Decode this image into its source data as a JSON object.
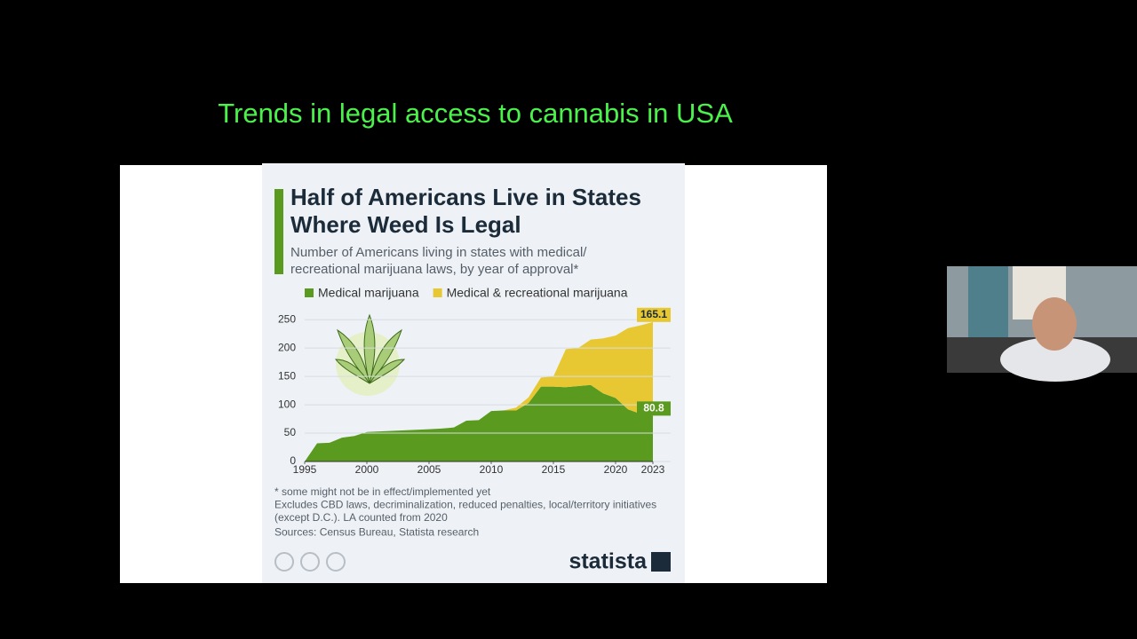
{
  "slide_title": "Trends in legal access to cannabis in USA",
  "chart_data": {
    "type": "area",
    "stacked": true,
    "title_lines": [
      "Half of Americans Live in States",
      "Where Weed Is Legal"
    ],
    "subtitle_lines": [
      "Number of Americans living in states with medical/",
      "recreational marijuana laws, by year of approval*"
    ],
    "x": [
      1995,
      1996,
      1997,
      1998,
      1999,
      2000,
      2001,
      2002,
      2003,
      2004,
      2005,
      2006,
      2007,
      2008,
      2009,
      2010,
      2011,
      2012,
      2013,
      2014,
      2015,
      2016,
      2017,
      2018,
      2019,
      2020,
      2021,
      2022,
      2023
    ],
    "series": [
      {
        "name": "Medical marijuana",
        "color": "#5a9a1e",
        "values": [
          0,
          32,
          33,
          42,
          45,
          52,
          53,
          54,
          55,
          56,
          57,
          58,
          60,
          72,
          73,
          89,
          90,
          90,
          103,
          132,
          132,
          131,
          133,
          135,
          120,
          112,
          92,
          84,
          80.8
        ]
      },
      {
        "name": "Medical & recreational marijuana",
        "color": "#e8c832",
        "values": [
          0,
          0,
          0,
          0,
          0,
          0,
          0,
          0,
          0,
          0,
          0,
          0,
          0,
          0,
          0,
          0,
          0,
          5,
          10,
          16,
          18,
          67,
          67,
          80,
          97,
          110,
          143,
          156,
          165.1
        ]
      }
    ],
    "xlim": [
      1995,
      2023
    ],
    "ylim": [
      0,
      255
    ],
    "xticks": [
      1995,
      2000,
      2005,
      2010,
      2015,
      2020,
      2023
    ],
    "yticks": [
      0,
      50,
      100,
      150,
      200,
      250
    ],
    "grid": true,
    "footnotes": [
      "* some might not be in effect/implemented yet",
      "Excludes CBD laws, decriminalization, reduced penalties, local/territory initiatives",
      "(except D.C.). LA counted from 2020",
      "Sources: Census Bureau, Statista research"
    ],
    "brand": "statista"
  }
}
